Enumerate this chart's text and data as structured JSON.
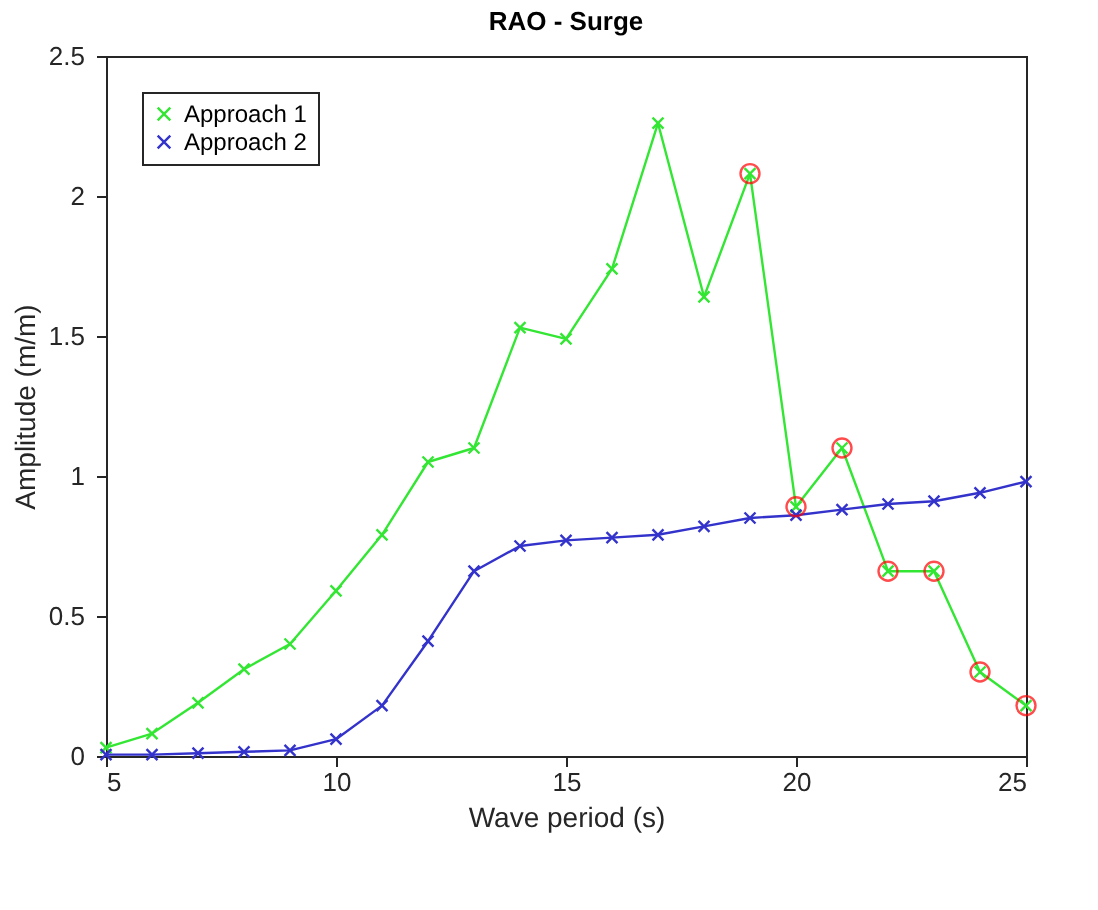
{
  "chart_data": {
    "type": "line",
    "title": "RAO - Surge",
    "xlabel": "Wave period (s)",
    "ylabel": "Amplitude (m/m)",
    "x": [
      5,
      6,
      7,
      8,
      9,
      10,
      11,
      12,
      13,
      14,
      15,
      16,
      17,
      18,
      19,
      20,
      21,
      22,
      23,
      24,
      25
    ],
    "series": [
      {
        "name": "Approach 1",
        "color": "#33e633",
        "marker": "cross",
        "values": [
          0.03,
          0.08,
          0.19,
          0.31,
          0.4,
          0.59,
          0.79,
          1.05,
          1.1,
          1.53,
          1.49,
          1.74,
          2.26,
          1.64,
          2.08,
          0.89,
          1.1,
          0.66,
          0.66,
          0.3,
          0.18
        ]
      },
      {
        "name": "Approach 2",
        "color": "#3333cc",
        "marker": "cross",
        "values": [
          0.005,
          0.005,
          0.01,
          0.015,
          0.02,
          0.06,
          0.18,
          0.41,
          0.66,
          0.75,
          0.77,
          0.78,
          0.79,
          0.82,
          0.85,
          0.86,
          0.88,
          0.9,
          0.91,
          0.94,
          0.98
        ]
      },
      {
        "type": "scatter",
        "color": "#ff0000",
        "marker": "circle",
        "x": [
          19,
          20,
          21,
          22,
          23,
          24,
          25
        ],
        "values": [
          2.08,
          0.89,
          1.1,
          0.66,
          0.66,
          0.3,
          0.18
        ]
      }
    ],
    "xlim": [
      5,
      25
    ],
    "xticks": [
      5,
      10,
      15,
      20,
      25
    ],
    "ylim": [
      0,
      2.5
    ],
    "yticks": [
      0,
      0.5,
      1,
      1.5,
      2,
      2.5
    ],
    "grid": false,
    "legend": "top left"
  }
}
